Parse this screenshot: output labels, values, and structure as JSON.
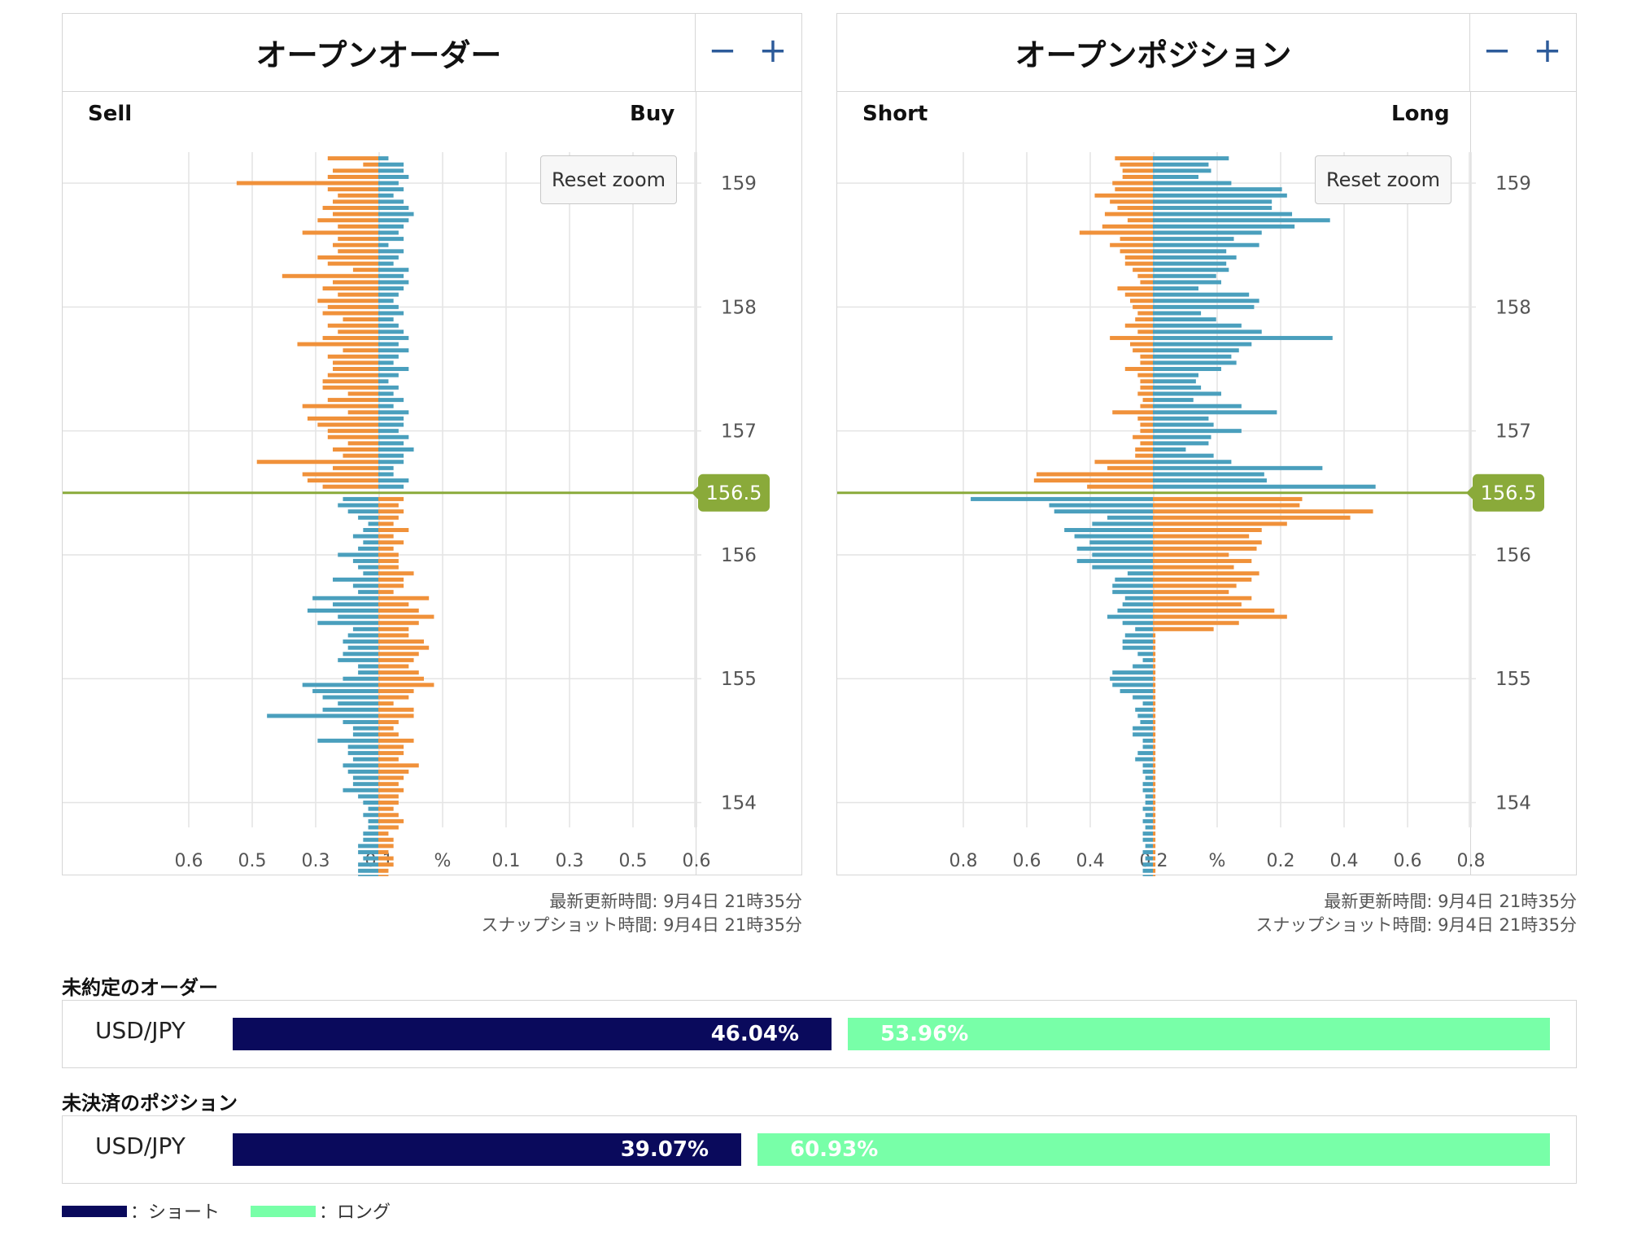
{
  "orders_panel": {
    "title": "オープンオーダー",
    "zoom_out": "−",
    "zoom_in": "+",
    "left_label": "Sell",
    "right_label": "Buy",
    "reset_zoom": "Reset zoom",
    "updated": "最新更新時間: 9月4日 21時35分",
    "snapshot": "スナップショット時間: 9月4日 21時35分"
  },
  "positions_panel": {
    "title": "オープンポジション",
    "zoom_out": "−",
    "zoom_in": "+",
    "left_label": "Short",
    "right_label": "Long",
    "reset_zoom": "Reset zoom",
    "updated": "最新更新時間: 9月4日 21時35分",
    "snapshot": "スナップショット時間: 9月4日 21時35分"
  },
  "colors": {
    "orange": "#f0913a",
    "teal": "#4a9fbd",
    "current_line": "#8aaa3a",
    "short": "#0a0a5c",
    "long": "#78ffa8",
    "grid": "#e4e4e4"
  },
  "chart_data": [
    {
      "type": "bar",
      "orientation": "horizontal",
      "title": "オープンオーダー",
      "y_axis_ticks": [
        "159",
        "158",
        "157",
        "156",
        "155",
        "154"
      ],
      "ylim": [
        153.8,
        159.25
      ],
      "x_axis_ticks": [
        "0.6",
        "0.5",
        "0.3",
        "0.1",
        "%",
        "0.1",
        "0.3",
        "0.5",
        "0.6"
      ],
      "xlim": [
        -0.5,
        0.5
      ],
      "current_price": "156.5",
      "step": 0.05,
      "series": [
        {
          "name": "Sell",
          "side": "left",
          "above_current_color": "orange",
          "below_current_color": "teal",
          "values": [
            0.1,
            0.03,
            0.09,
            0.1,
            0.28,
            0.1,
            0.08,
            0.09,
            0.11,
            0.09,
            0.12,
            0.08,
            0.15,
            0.08,
            0.09,
            0.08,
            0.12,
            0.1,
            0.05,
            0.19,
            0.09,
            0.11,
            0.08,
            0.12,
            0.1,
            0.11,
            0.07,
            0.1,
            0.08,
            0.11,
            0.16,
            0.07,
            0.1,
            0.09,
            0.09,
            0.1,
            0.11,
            0.11,
            0.06,
            0.1,
            0.15,
            0.06,
            0.14,
            0.12,
            0.1,
            0.1,
            0.06,
            0.09,
            0.07,
            0.24,
            0.09,
            0.15,
            0.14,
            0.11,
            0.12,
            0.07,
            0.08,
            0.06,
            0.04,
            0.02,
            0.03,
            0.05,
            0.03,
            0.04,
            0.08,
            0.05,
            0.04,
            0.03,
            0.09,
            0.05,
            0.04,
            0.13,
            0.09,
            0.14,
            0.08,
            0.12,
            0.05,
            0.06,
            0.07,
            0.06,
            0.07,
            0.08,
            0.04,
            0.04,
            0.07,
            0.15,
            0.13,
            0.11,
            0.08,
            0.11,
            0.22,
            0.07,
            0.05,
            0.05,
            0.12,
            0.06,
            0.06,
            0.05,
            0.07,
            0.06,
            0.05,
            0.05,
            0.07,
            0.04,
            0.03,
            0.02,
            0.03,
            0.02,
            0.02,
            0.03,
            0.03,
            0.04,
            0.04,
            0.03,
            0.04,
            0.04,
            0.04
          ]
        },
        {
          "name": "Buy",
          "side": "right",
          "above_current_color": "teal",
          "below_current_color": "orange",
          "values": [
            0.02,
            0.05,
            0.05,
            0.06,
            0.04,
            0.05,
            0.03,
            0.05,
            0.06,
            0.07,
            0.06,
            0.05,
            0.04,
            0.05,
            0.02,
            0.05,
            0.04,
            0.03,
            0.06,
            0.05,
            0.06,
            0.05,
            0.04,
            0.03,
            0.04,
            0.05,
            0.03,
            0.04,
            0.05,
            0.06,
            0.04,
            0.06,
            0.04,
            0.03,
            0.06,
            0.04,
            0.02,
            0.04,
            0.03,
            0.05,
            0.03,
            0.06,
            0.05,
            0.05,
            0.04,
            0.06,
            0.05,
            0.07,
            0.05,
            0.05,
            0.03,
            0.03,
            0.06,
            0.05,
            0.06,
            0.05,
            0.04,
            0.05,
            0.04,
            0.03,
            0.06,
            0.03,
            0.05,
            0.03,
            0.04,
            0.04,
            0.04,
            0.07,
            0.05,
            0.05,
            0.03,
            0.1,
            0.06,
            0.08,
            0.11,
            0.08,
            0.06,
            0.06,
            0.09,
            0.1,
            0.08,
            0.07,
            0.06,
            0.08,
            0.09,
            0.11,
            0.07,
            0.06,
            0.03,
            0.07,
            0.07,
            0.04,
            0.03,
            0.04,
            0.07,
            0.05,
            0.05,
            0.04,
            0.08,
            0.06,
            0.05,
            0.04,
            0.05,
            0.04,
            0.04,
            0.03,
            0.04,
            0.05,
            0.04,
            0.02,
            0.03,
            0.03,
            0.02,
            0.03,
            0.03,
            0.02,
            0.02
          ]
        }
      ]
    },
    {
      "type": "bar",
      "orientation": "horizontal",
      "title": "オープンポジション",
      "y_axis_ticks": [
        "159",
        "158",
        "157",
        "156",
        "155",
        "154"
      ],
      "ylim": [
        153.8,
        159.25
      ],
      "x_axis_ticks": [
        "0.8",
        "0.6",
        "0.4",
        "0.2",
        "%",
        "0.2",
        "0.4",
        "0.6",
        "0.8"
      ],
      "xlim": [
        -1.0,
        1.0
      ],
      "current_price": "156.5",
      "step": 0.05,
      "series": [
        {
          "name": "Short",
          "side": "left",
          "above_current_color": "orange",
          "below_current_color": "teal",
          "values": [
            0.15,
            0.13,
            0.12,
            0.12,
            0.16,
            0.15,
            0.23,
            0.17,
            0.14,
            0.19,
            0.1,
            0.2,
            0.29,
            0.13,
            0.17,
            0.13,
            0.11,
            0.11,
            0.08,
            0.06,
            0.05,
            0.14,
            0.11,
            0.09,
            0.08,
            0.06,
            0.07,
            0.11,
            0.06,
            0.17,
            0.09,
            0.08,
            0.05,
            0.05,
            0.11,
            0.06,
            0.05,
            0.05,
            0.06,
            0.04,
            0.05,
            0.16,
            0.06,
            0.05,
            0.05,
            0.08,
            0.05,
            0.07,
            0.07,
            0.23,
            0.18,
            0.46,
            0.47,
            0.26,
            0.51,
            0.72,
            0.41,
            0.39,
            0.18,
            0.24,
            0.35,
            0.31,
            0.25,
            0.3,
            0.24,
            0.3,
            0.24,
            0.1,
            0.15,
            0.16,
            0.16,
            0.11,
            0.12,
            0.14,
            0.18,
            0.12,
            0.07,
            0.11,
            0.12,
            0.12,
            0.06,
            0.04,
            0.08,
            0.16,
            0.17,
            0.16,
            0.13,
            0.08,
            0.04,
            0.07,
            0.06,
            0.05,
            0.08,
            0.08,
            0.04,
            0.04,
            0.06,
            0.07,
            0.04,
            0.04,
            0.03,
            0.04,
            0.04,
            0.03,
            0.03,
            0.04,
            0.03,
            0.04,
            0.03,
            0.04,
            0.04,
            0.03,
            0.04,
            0.03,
            0.04,
            0.04,
            0.04
          ]
        },
        {
          "name": "Long",
          "side": "right",
          "above_current_color": "teal",
          "below_current_color": "orange",
          "values": [
            0.3,
            0.22,
            0.23,
            0.18,
            0.31,
            0.51,
            0.53,
            0.47,
            0.47,
            0.55,
            0.7,
            0.56,
            0.43,
            0.32,
            0.42,
            0.29,
            0.33,
            0.29,
            0.3,
            0.25,
            0.27,
            0.18,
            0.38,
            0.42,
            0.4,
            0.19,
            0.25,
            0.35,
            0.43,
            0.71,
            0.39,
            0.34,
            0.31,
            0.33,
            0.27,
            0.18,
            0.17,
            0.19,
            0.27,
            0.16,
            0.35,
            0.49,
            0.22,
            0.24,
            0.35,
            0.23,
            0.22,
            0.13,
            0.24,
            0.31,
            0.67,
            0.44,
            0.45,
            0.88,
            0.89,
            0.59,
            0.58,
            0.87,
            0.78,
            0.53,
            0.43,
            0.38,
            0.43,
            0.41,
            0.3,
            0.39,
            0.32,
            0.42,
            0.39,
            0.33,
            0.3,
            0.39,
            0.35,
            0.48,
            0.53,
            0.34,
            0.24,
            0.01,
            0.01,
            0.01,
            0.01,
            0.01,
            0.01,
            0.01,
            0.01,
            0.01,
            0.01,
            0.01,
            0.01,
            0.01,
            0.01,
            0.01,
            0.01,
            0.01,
            0.01,
            0.01,
            0.01,
            0.01,
            0.01,
            0.01,
            0.01,
            0.01,
            0.01,
            0.01,
            0.01,
            0.01,
            0.01,
            0.01,
            0.01,
            0.01,
            0.01,
            0.01,
            0.01,
            0.01,
            0.01,
            0.01,
            0.01
          ]
        }
      ]
    }
  ],
  "summary": {
    "orders_title": "未約定のオーダー",
    "orders_pair": "USD/JPY",
    "orders_short_pct": "46.04%",
    "orders_long_pct": "53.96%",
    "orders_short_fraction": 0.4604,
    "positions_title": "未決済のポジション",
    "positions_pair": "USD/JPY",
    "positions_short_pct": "39.07%",
    "positions_long_pct": "60.93%",
    "positions_short_fraction": 0.3907
  },
  "legend": {
    "short_label": "：ショート",
    "long_label": "：ロング"
  }
}
